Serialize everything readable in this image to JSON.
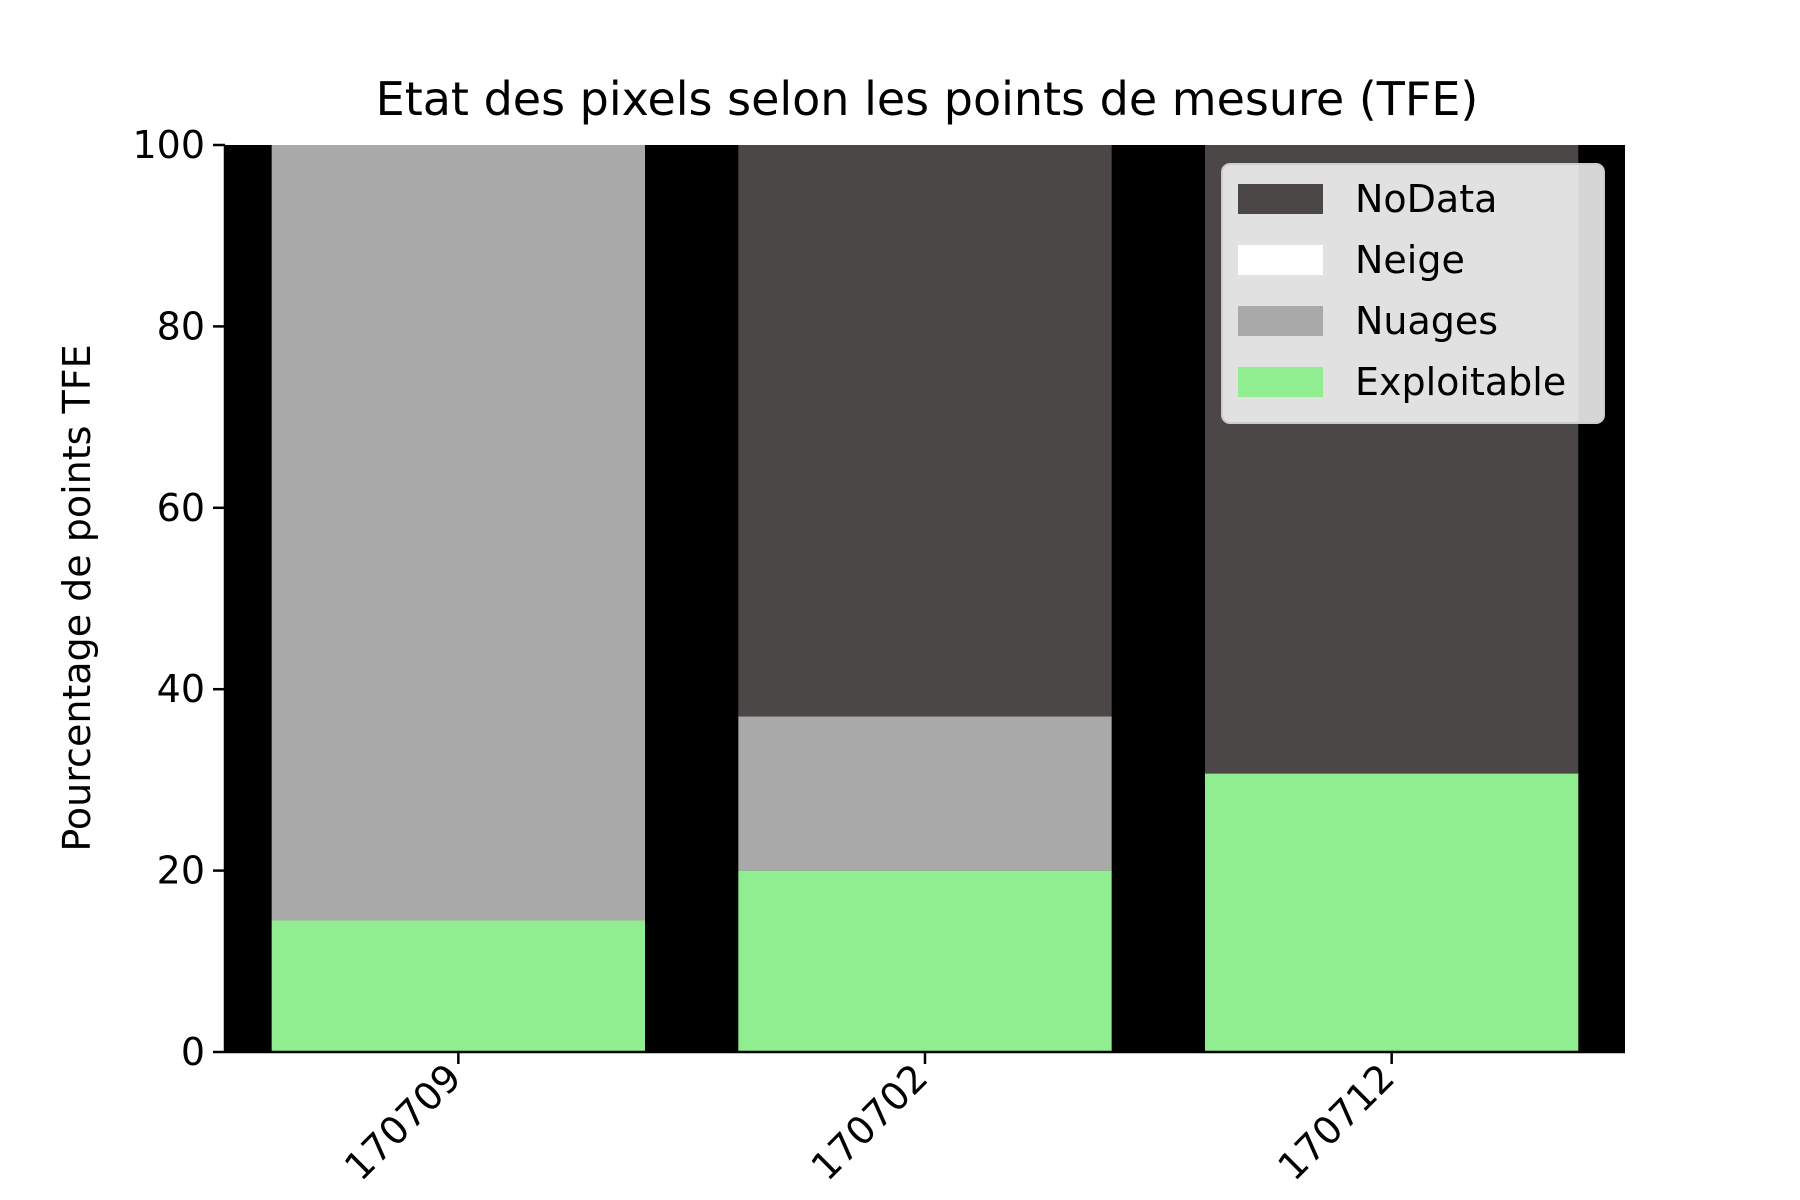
{
  "chart_data": {
    "type": "bar",
    "stacked": true,
    "title": "Etat des pixels selon les points de mesure (TFE)",
    "xlabel": "",
    "ylabel": "Pourcentage de points TFE",
    "ylim": [
      0,
      100
    ],
    "yticks": [
      "0",
      "20",
      "40",
      "60",
      "80",
      "100"
    ],
    "categories": [
      "170709",
      "170702",
      "170712"
    ],
    "series": [
      {
        "name": "Exploitable",
        "color": "#90ee90",
        "values": [
          14.5,
          20,
          30.7
        ]
      },
      {
        "name": "Nuages",
        "color": "#a9a9a9",
        "values": [
          85.5,
          17,
          0
        ]
      },
      {
        "name": "Neige",
        "color": "#ffffff",
        "values": [
          0,
          0,
          0
        ]
      },
      {
        "name": "NoData",
        "color": "#4b4746",
        "values": [
          0,
          63,
          69.3
        ]
      }
    ],
    "legend_order": [
      "NoData",
      "Neige",
      "Nuages",
      "Exploitable"
    ],
    "legend_position": "top-right",
    "plot_background": "#000000",
    "grid": false
  }
}
